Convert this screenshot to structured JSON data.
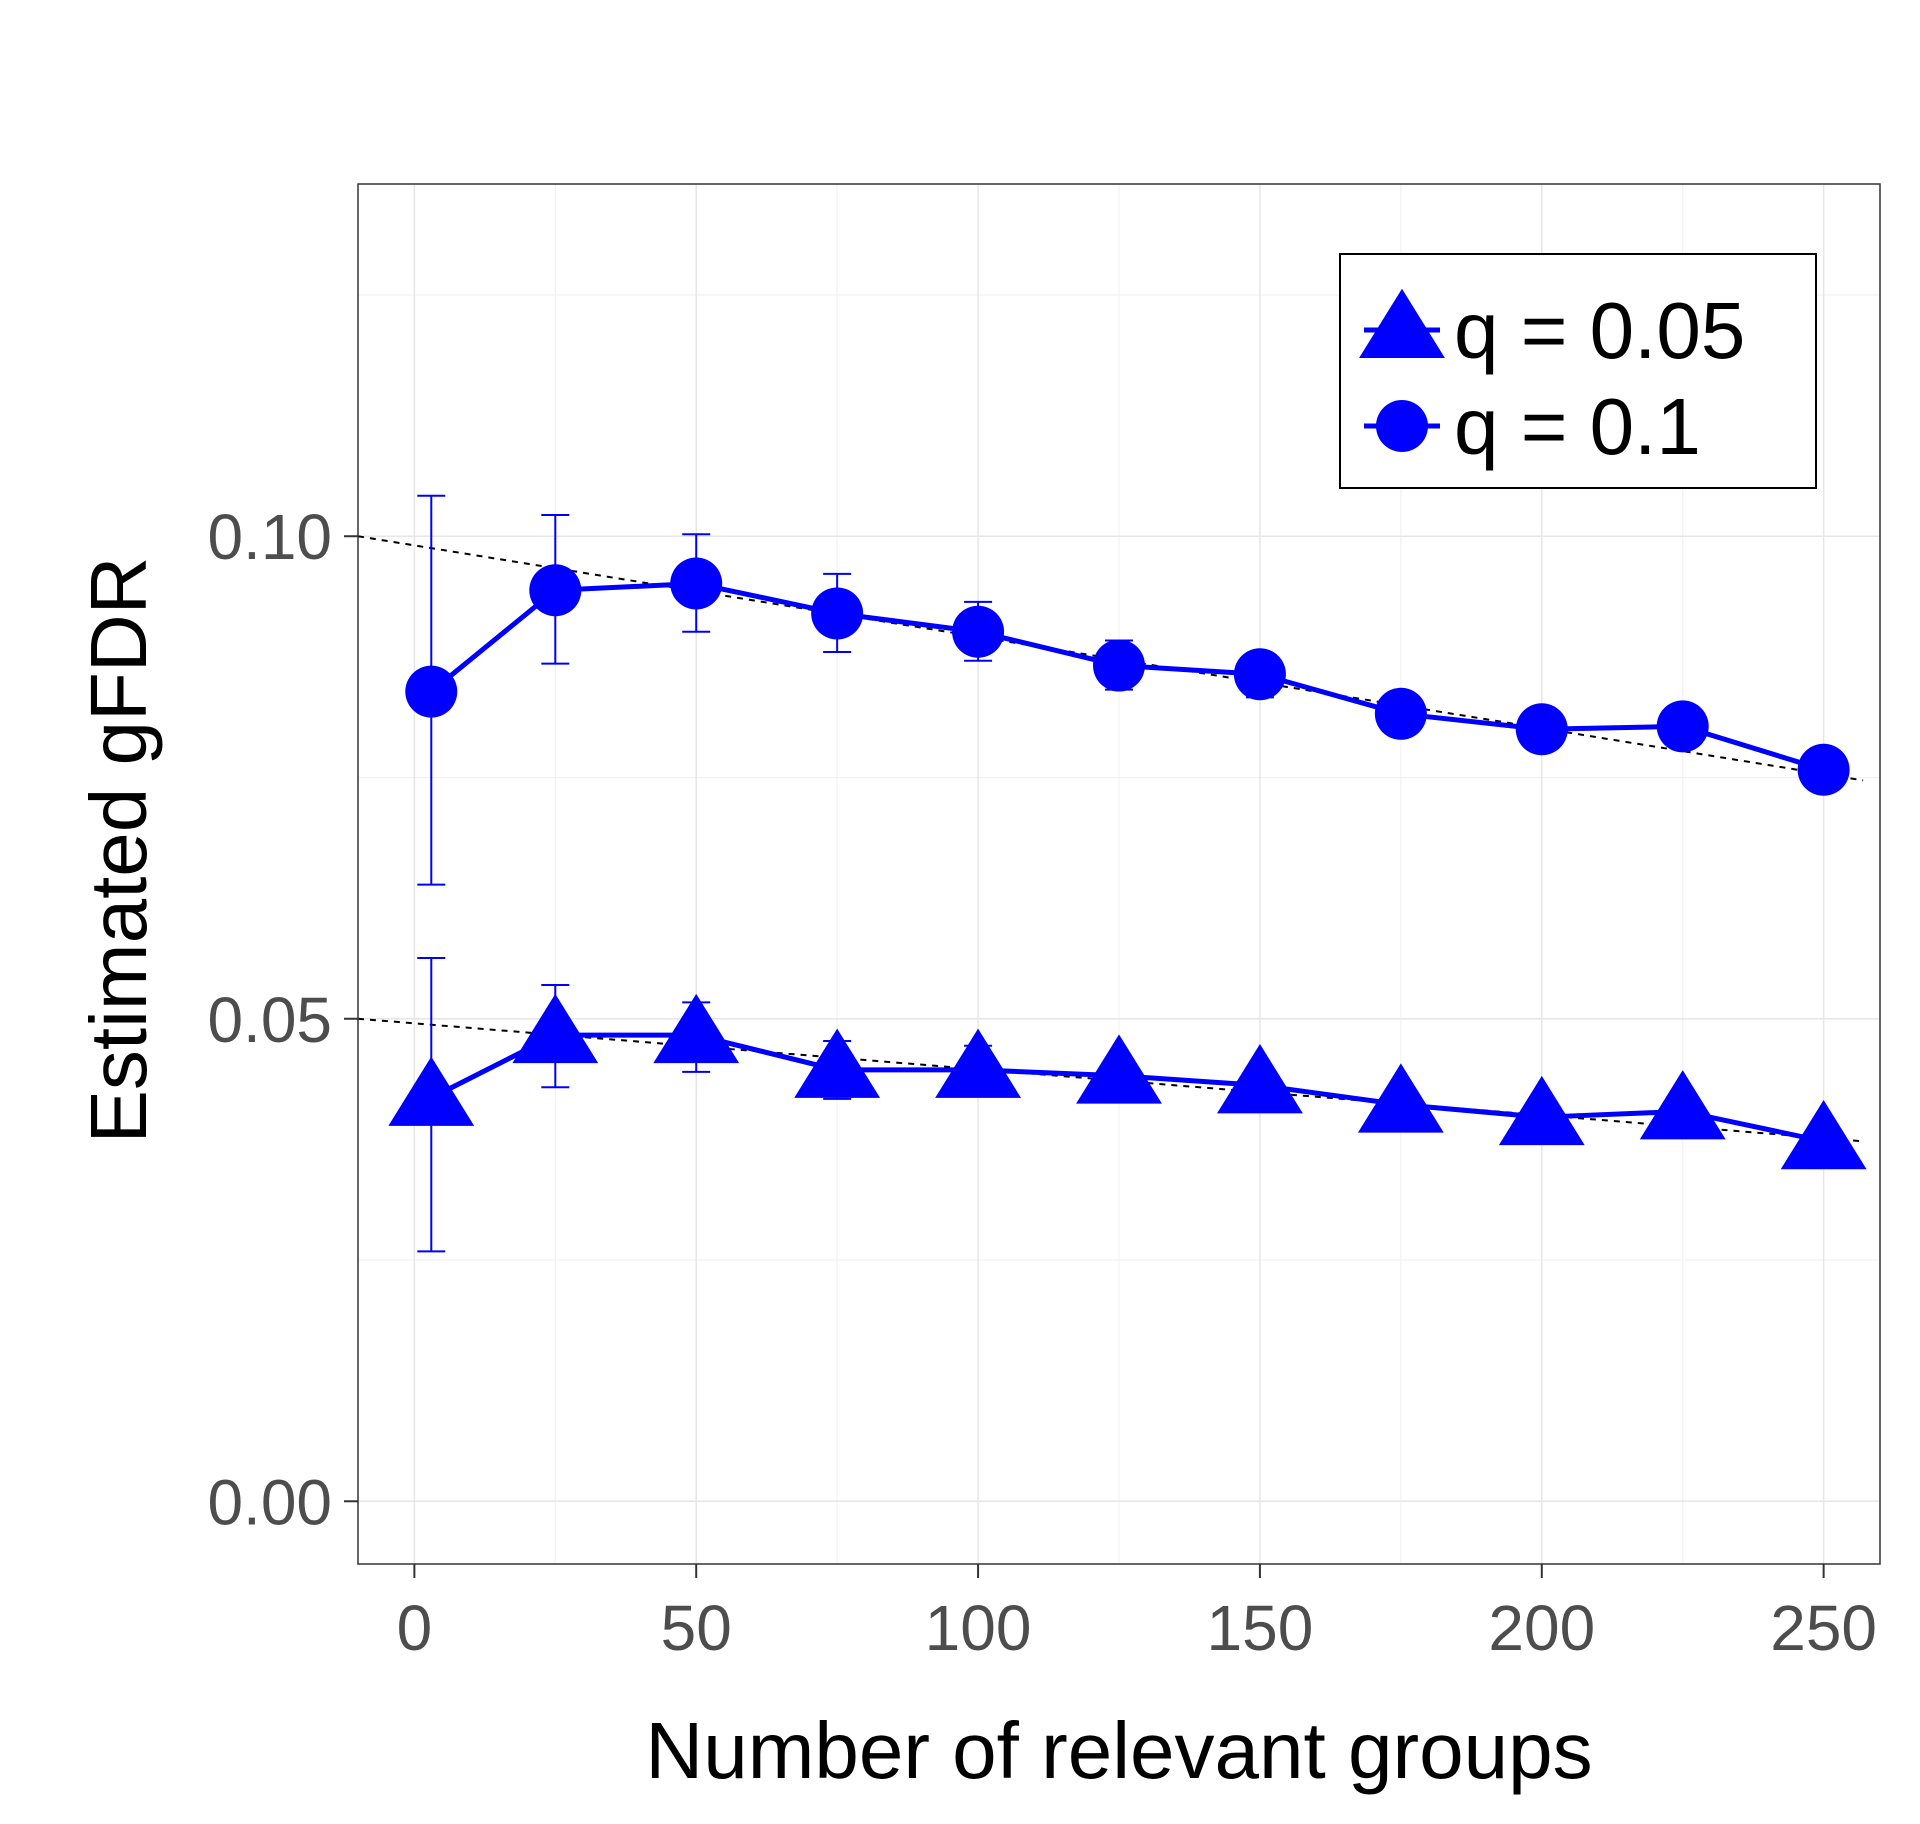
{
  "chart_data": {
    "type": "line",
    "xlabel": "Number of relevant groups",
    "ylabel": "Estimated gFDR",
    "xlim": [
      -10,
      260
    ],
    "ylim": [
      -0.0065,
      0.1365
    ],
    "x_ticks": [
      0,
      50,
      100,
      150,
      200,
      250
    ],
    "x_tick_labels": [
      "0",
      "50",
      "100",
      "150",
      "200",
      "250"
    ],
    "y_ticks": [
      0.0,
      0.05,
      0.1
    ],
    "y_tick_labels": [
      "0.00",
      "0.05",
      "0.10"
    ],
    "y_minor_gridlines": [
      0.025,
      0.075,
      0.125
    ],
    "grid": true,
    "legend_position": "top-right",
    "series_color": "#0000ff",
    "reference_line_color": "#000000",
    "series": [
      {
        "name": "q = 0.05",
        "marker": "triangle",
        "x": [
          3,
          25,
          50,
          75,
          100,
          125,
          150,
          175,
          200,
          225,
          250
        ],
        "y": [
          0.0418,
          0.0483,
          0.0483,
          0.0447,
          0.0447,
          0.0441,
          0.0431,
          0.0411,
          0.0398,
          0.0404,
          0.0373
        ],
        "err_low": [
          0.0259,
          0.0429,
          0.0445,
          0.0417,
          0.0422,
          null,
          null,
          null,
          null,
          null,
          null
        ],
        "err_high": [
          0.0563,
          0.0535,
          0.0517,
          0.0477,
          0.0472,
          null,
          null,
          null,
          null,
          null,
          null
        ],
        "reference_line": {
          "x": [
            -10,
            257
          ],
          "y": [
            0.05,
            0.0373
          ]
        }
      },
      {
        "name": "q = 0.1",
        "marker": "circle",
        "x": [
          3,
          25,
          50,
          75,
          100,
          125,
          150,
          175,
          200,
          225,
          250
        ],
        "y": [
          0.0839,
          0.0944,
          0.0951,
          0.092,
          0.0901,
          0.0866,
          0.0857,
          0.0816,
          0.08,
          0.0803,
          0.0758
        ],
        "err_low": [
          0.0639,
          0.0868,
          0.0901,
          0.088,
          0.0871,
          0.0841,
          0.0833,
          null,
          null,
          null,
          null
        ],
        "err_high": [
          0.1042,
          0.1022,
          0.1002,
          0.0961,
          0.0932,
          0.0892,
          0.0878,
          null,
          null,
          null,
          null
        ],
        "reference_line": {
          "x": [
            -10,
            257
          ],
          "y": [
            0.1,
            0.0747
          ]
        }
      }
    ]
  }
}
